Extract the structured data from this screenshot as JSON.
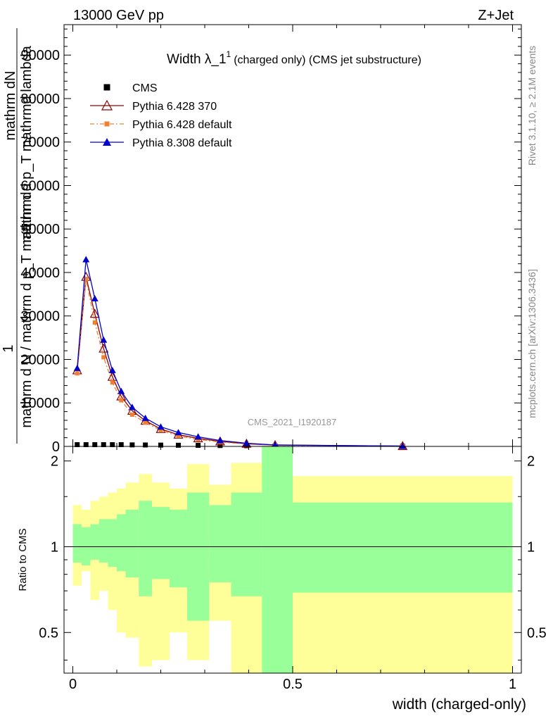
{
  "header": {
    "left": "13000 GeV pp",
    "right": "Z+Jet"
  },
  "side_text": {
    "rivet": "Rivet 3.1.10, ≥ 2.1M events",
    "mcplots": "mcplots.cern.ch [arXiv:1306.3436]"
  },
  "watermark": "CMS_2021_I1920187",
  "chart_data": {
    "type": "line",
    "title": {
      "main": "Width λ_1",
      "sup": "1",
      "rest": "(charged only) (CMS jet substructure)"
    },
    "ylabel_lines": [
      "mathrm dN",
      "mathrm d p_T mathrmd lambda",
      "1",
      "mathrm d N / mathrm d p_T mathrm d"
    ],
    "xlabel": "width (charged-only)",
    "ratio_ylabel": "Ratio to CMS",
    "xlim": [
      -0.02,
      1.02
    ],
    "ylim": [
      0,
      97000
    ],
    "ratio_ylim": [
      0.36,
      2.25
    ],
    "main_yticks": [
      {
        "v": 0,
        "label": "0"
      },
      {
        "v": 10000,
        "label": "10000"
      },
      {
        "v": 20000,
        "label": "20000"
      },
      {
        "v": 30000,
        "label": "30000"
      },
      {
        "v": 40000,
        "label": "40000"
      },
      {
        "v": 50000,
        "label": "50000"
      },
      {
        "v": 60000,
        "label": "60000"
      },
      {
        "v": 70000,
        "label": "70000"
      },
      {
        "v": 80000,
        "label": "80000"
      },
      {
        "v": 90000,
        "label": "90000"
      }
    ],
    "ratio_yticks": [
      {
        "v": 0.5,
        "label": "0.5"
      },
      {
        "v": 1,
        "label": "1"
      },
      {
        "v": 2,
        "label": "2"
      }
    ],
    "xticks": [
      {
        "v": 0,
        "label": "0"
      },
      {
        "v": 0.5,
        "label": "0.5"
      },
      {
        "v": 1,
        "label": "1"
      }
    ],
    "x": [
      0.01,
      0.03,
      0.05,
      0.07,
      0.09,
      0.11,
      0.135,
      0.165,
      0.2,
      0.24,
      0.285,
      0.335,
      0.395,
      0.46,
      0.75
    ],
    "bin_edges": [
      0.0,
      0.02,
      0.04,
      0.06,
      0.08,
      0.1,
      0.12,
      0.15,
      0.18,
      0.22,
      0.26,
      0.31,
      0.36,
      0.43,
      0.5,
      1.0
    ],
    "series": [
      {
        "name": "CMS",
        "color": "#000000",
        "marker": "square",
        "line": "none",
        "values": [
          400,
          400,
          400,
          400,
          400,
          400,
          350,
          330,
          300,
          270,
          240,
          200,
          160,
          120,
          40
        ]
      },
      {
        "name": "Pythia 6.428 370",
        "color": "#8b0000",
        "marker": "triangle-open",
        "line": "solid",
        "values": [
          17500,
          39000,
          30500,
          22500,
          16000,
          11500,
          8200,
          5900,
          4000,
          2700,
          1850,
          1150,
          620,
          300,
          80
        ]
      },
      {
        "name": "Pythia 6.428 default",
        "color": "#f08030",
        "marker": "square-small",
        "line": "dashdot",
        "values": [
          16800,
          38500,
          28500,
          20500,
          14700,
          10600,
          7300,
          5500,
          3700,
          2400,
          1600,
          1000,
          530,
          250,
          60
        ]
      },
      {
        "name": "Pythia 8.308 default",
        "color": "#0000cc",
        "marker": "triangle-filled",
        "line": "solid",
        "values": [
          18000,
          43000,
          34000,
          24500,
          17500,
          12700,
          9000,
          6500,
          4500,
          3200,
          2200,
          1350,
          720,
          330,
          70
        ]
      }
    ],
    "ratio_bands": {
      "green_color": "#99ff99",
      "yellow_color": "#ffff99",
      "green": [
        [
          0.88,
          1.2
        ],
        [
          0.86,
          1.17
        ],
        [
          0.9,
          1.2
        ],
        [
          0.88,
          1.25
        ],
        [
          0.85,
          1.25
        ],
        [
          0.82,
          1.3
        ],
        [
          0.78,
          1.35
        ],
        [
          0.67,
          1.45
        ],
        [
          0.77,
          1.38
        ],
        [
          0.72,
          1.35
        ],
        [
          0.55,
          1.55
        ],
        [
          0.75,
          1.4
        ],
        [
          0.67,
          1.55
        ],
        [
          0.36,
          2.25
        ],
        [
          0.69,
          1.43
        ]
      ],
      "yellow": [
        [
          0.73,
          1.4
        ],
        [
          0.82,
          1.35
        ],
        [
          0.65,
          1.45
        ],
        [
          0.7,
          1.5
        ],
        [
          0.6,
          1.55
        ],
        [
          0.5,
          1.6
        ],
        [
          0.48,
          1.68
        ],
        [
          0.38,
          1.8
        ],
        [
          0.4,
          1.68
        ],
        [
          0.5,
          1.6
        ],
        [
          0.4,
          1.95
        ],
        [
          0.55,
          1.65
        ],
        [
          0.36,
          1.97
        ],
        [
          0.36,
          2.25
        ],
        [
          0.36,
          1.77
        ]
      ]
    },
    "legend_position": "top-left",
    "grid": false
  }
}
